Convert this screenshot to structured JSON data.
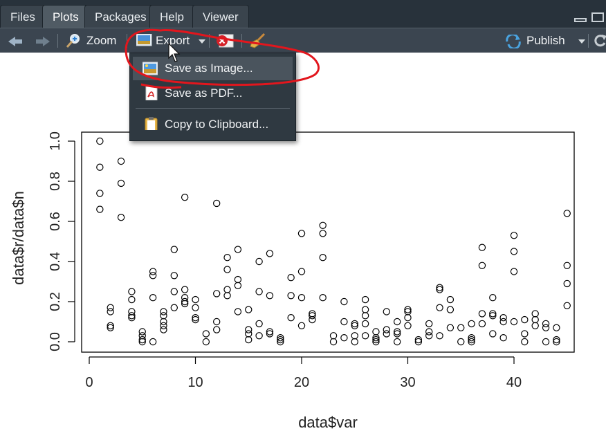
{
  "tabs": [
    {
      "label": "Files",
      "active": false
    },
    {
      "label": "Plots",
      "active": true
    },
    {
      "label": "Packages",
      "active": false
    },
    {
      "label": "Help",
      "active": false
    },
    {
      "label": "Viewer",
      "active": false
    }
  ],
  "toolbar": {
    "zoom_label": "Zoom",
    "export_label": "Export",
    "publish_label": "Publish"
  },
  "export_menu": {
    "items": [
      {
        "label": "Save as Image...",
        "icon": "image-icon",
        "highlighted": true
      },
      {
        "label": "Save as PDF...",
        "icon": "pdf-icon",
        "highlighted": false
      },
      {
        "label": "Copy to Clipboard...",
        "icon": "clipboard-icon",
        "highlighted": false
      }
    ]
  },
  "colors": {
    "annotation": "#e2161d",
    "toolbar_bg": "#3b4550",
    "menu_bg": "#2f3941"
  },
  "chart_data": {
    "type": "scatter",
    "xlabel": "data$var",
    "ylabel": "data$r/data$n",
    "xlim": [
      0,
      45
    ],
    "ylim": [
      0,
      1
    ],
    "x_ticks": [
      "0",
      "10",
      "20",
      "30",
      "40"
    ],
    "y_ticks": [
      "0.0",
      "0.2",
      "0.4",
      "0.6",
      "0.8",
      "1.0"
    ],
    "points": [
      [
        1,
        1.0
      ],
      [
        1,
        0.87
      ],
      [
        1,
        0.74
      ],
      [
        1,
        0.66
      ],
      [
        2,
        0.17
      ],
      [
        2,
        0.15
      ],
      [
        2,
        0.08
      ],
      [
        2,
        0.07
      ],
      [
        3,
        0.9
      ],
      [
        3,
        0.79
      ],
      [
        3,
        0.62
      ],
      [
        4,
        0.25
      ],
      [
        4,
        0.21
      ],
      [
        4,
        0.15
      ],
      [
        4,
        0.13
      ],
      [
        4,
        0.12
      ],
      [
        5,
        0.05
      ],
      [
        5,
        0.03
      ],
      [
        5,
        0.01
      ],
      [
        5,
        0.0
      ],
      [
        6,
        0.35
      ],
      [
        6,
        0.33
      ],
      [
        6,
        0.22
      ],
      [
        6,
        0.0
      ],
      [
        7,
        0.15
      ],
      [
        7,
        0.13
      ],
      [
        7,
        0.1
      ],
      [
        7,
        0.08
      ],
      [
        7,
        0.06
      ],
      [
        8,
        0.46
      ],
      [
        8,
        0.33
      ],
      [
        8,
        0.25
      ],
      [
        8,
        0.17
      ],
      [
        9,
        0.72
      ],
      [
        9,
        0.26
      ],
      [
        9,
        0.22
      ],
      [
        9,
        0.2
      ],
      [
        9,
        0.19
      ],
      [
        10,
        0.21
      ],
      [
        10,
        0.17
      ],
      [
        10,
        0.12
      ],
      [
        10,
        0.11
      ],
      [
        11,
        0.04
      ],
      [
        11,
        0.0
      ],
      [
        12,
        0.69
      ],
      [
        12,
        0.24
      ],
      [
        12,
        0.1
      ],
      [
        12,
        0.06
      ],
      [
        13,
        0.42
      ],
      [
        13,
        0.36
      ],
      [
        13,
        0.26
      ],
      [
        13,
        0.23
      ],
      [
        14,
        0.46
      ],
      [
        14,
        0.31
      ],
      [
        14,
        0.28
      ],
      [
        14,
        0.15
      ],
      [
        15,
        0.16
      ],
      [
        15,
        0.06
      ],
      [
        15,
        0.04
      ],
      [
        15,
        0.01
      ],
      [
        16,
        0.4
      ],
      [
        16,
        0.25
      ],
      [
        16,
        0.09
      ],
      [
        16,
        0.03
      ],
      [
        17,
        0.44
      ],
      [
        17,
        0.23
      ],
      [
        17,
        0.05
      ],
      [
        17,
        0.04
      ],
      [
        18,
        0.02
      ],
      [
        18,
        0.01
      ],
      [
        18,
        0.0
      ],
      [
        19,
        0.32
      ],
      [
        19,
        0.23
      ],
      [
        19,
        0.12
      ],
      [
        20,
        0.54
      ],
      [
        20,
        0.35
      ],
      [
        20,
        0.22
      ],
      [
        20,
        0.08
      ],
      [
        21,
        0.14
      ],
      [
        21,
        0.13
      ],
      [
        21,
        0.11
      ],
      [
        22,
        0.58
      ],
      [
        22,
        0.54
      ],
      [
        22,
        0.42
      ],
      [
        22,
        0.22
      ],
      [
        23,
        0.03
      ],
      [
        23,
        0.0
      ],
      [
        24,
        0.2
      ],
      [
        24,
        0.1
      ],
      [
        24,
        0.02
      ],
      [
        25,
        0.09
      ],
      [
        25,
        0.08
      ],
      [
        25,
        0.03
      ],
      [
        25,
        0.0
      ],
      [
        26,
        0.21
      ],
      [
        26,
        0.16
      ],
      [
        26,
        0.13
      ],
      [
        26,
        0.09
      ],
      [
        26,
        0.03
      ],
      [
        27,
        0.05
      ],
      [
        27,
        0.02
      ],
      [
        27,
        0.01
      ],
      [
        27,
        0.0
      ],
      [
        28,
        0.15
      ],
      [
        28,
        0.06
      ],
      [
        28,
        0.04
      ],
      [
        29,
        0.1
      ],
      [
        29,
        0.05
      ],
      [
        29,
        0.04
      ],
      [
        29,
        0.0
      ],
      [
        30,
        0.16
      ],
      [
        30,
        0.15
      ],
      [
        30,
        0.12
      ],
      [
        30,
        0.08
      ],
      [
        31,
        0.01
      ],
      [
        31,
        0.0
      ],
      [
        32,
        0.09
      ],
      [
        32,
        0.05
      ],
      [
        32,
        0.03
      ],
      [
        33,
        0.27
      ],
      [
        33,
        0.26
      ],
      [
        33,
        0.17
      ],
      [
        33,
        0.03
      ],
      [
        34,
        0.21
      ],
      [
        34,
        0.16
      ],
      [
        34,
        0.07
      ],
      [
        35,
        0.07
      ],
      [
        35,
        0.0
      ],
      [
        36,
        0.09
      ],
      [
        36,
        0.02
      ],
      [
        36,
        0.01
      ],
      [
        36,
        0.0
      ],
      [
        37,
        0.47
      ],
      [
        37,
        0.38
      ],
      [
        37,
        0.14
      ],
      [
        37,
        0.09
      ],
      [
        38,
        0.22
      ],
      [
        38,
        0.14
      ],
      [
        38,
        0.13
      ],
      [
        38,
        0.04
      ],
      [
        39,
        0.12
      ],
      [
        39,
        0.1
      ],
      [
        39,
        0.02
      ],
      [
        40,
        0.53
      ],
      [
        40,
        0.45
      ],
      [
        40,
        0.35
      ],
      [
        40,
        0.1
      ],
      [
        41,
        0.11
      ],
      [
        41,
        0.04
      ],
      [
        41,
        0.0
      ],
      [
        42,
        0.14
      ],
      [
        42,
        0.11
      ],
      [
        42,
        0.08
      ],
      [
        43,
        0.09
      ],
      [
        43,
        0.07
      ],
      [
        43,
        0.0
      ],
      [
        44,
        0.07
      ],
      [
        44,
        0.01
      ],
      [
        44,
        0.0
      ],
      [
        45,
        0.64
      ],
      [
        45,
        0.38
      ],
      [
        45,
        0.29
      ],
      [
        45,
        0.18
      ]
    ],
    "grid": false,
    "legend": "none"
  }
}
